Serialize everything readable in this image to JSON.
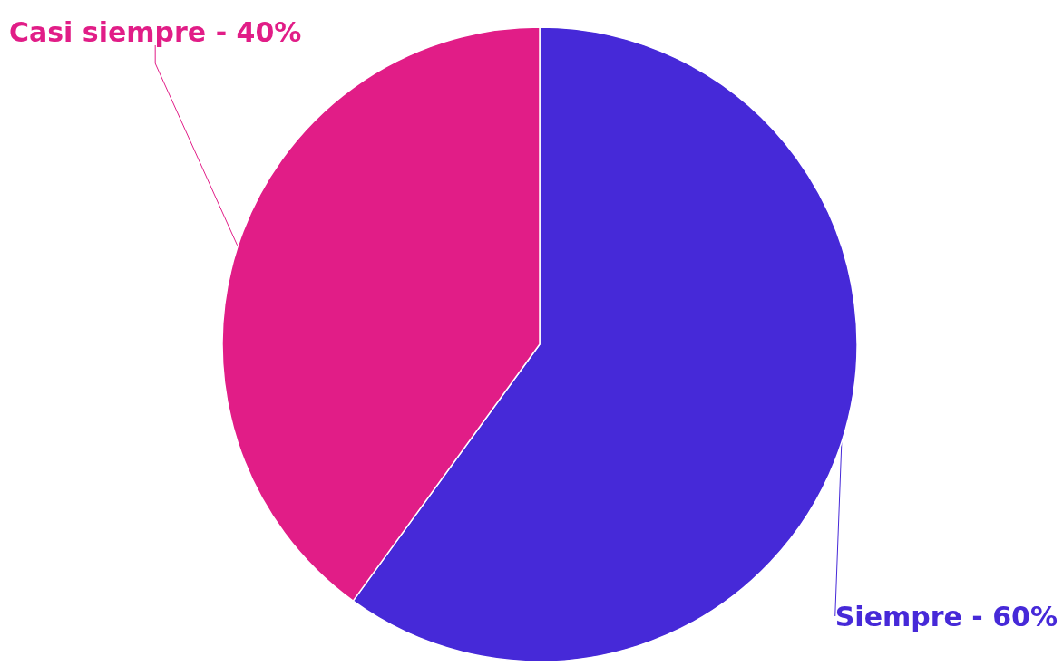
{
  "chart_data": {
    "type": "pie",
    "categories": [
      "Siempre -",
      "Casi siempre -"
    ],
    "values": [
      60,
      40
    ],
    "colors": [
      "#4629d8",
      "#e11d87"
    ],
    "value_labels": [
      "60%",
      "40%"
    ]
  }
}
